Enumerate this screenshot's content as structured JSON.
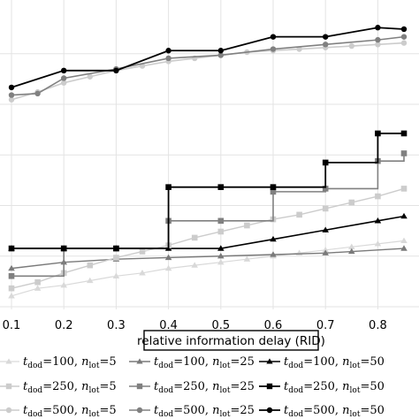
{
  "chart_data": {
    "type": "line",
    "xlabel": "relative information delay (RID)",
    "xticks": [
      "0.1",
      "0.2",
      "0.3",
      "0.4",
      "0.5",
      "0.6",
      "0.7",
      "0.8"
    ],
    "xlim": [
      0.1,
      0.85
    ],
    "ylim": [
      0,
      1
    ],
    "grid": true,
    "legend_position": "bottom",
    "series": [
      {
        "name_parts": {
          "t": "100",
          "n": "5"
        },
        "color": "#d9d9d9",
        "marker": "triangle",
        "width": 1.2,
        "x": [
          0.1,
          0.15,
          0.2,
          0.25,
          0.3,
          0.35,
          0.4,
          0.45,
          0.5,
          0.55,
          0.6,
          0.65,
          0.7,
          0.75,
          0.8,
          0.85
        ],
        "y": [
          0.035,
          0.06,
          0.07,
          0.085,
          0.1,
          0.11,
          0.125,
          0.135,
          0.145,
          0.155,
          0.165,
          0.175,
          0.185,
          0.195,
          0.205,
          0.215
        ]
      },
      {
        "name_parts": {
          "t": "100",
          "n": "25"
        },
        "color": "#7a7a7a",
        "marker": "triangle",
        "width": 1.4,
        "x": [
          0.1,
          0.2,
          0.3,
          0.4,
          0.5,
          0.6,
          0.7,
          0.75,
          0.85
        ],
        "y": [
          0.125,
          0.145,
          0.155,
          0.16,
          0.165,
          0.17,
          0.175,
          0.18,
          0.19
        ]
      },
      {
        "name_parts": {
          "t": "100",
          "n": "50"
        },
        "color": "#000000",
        "marker": "triangle",
        "width": 1.6,
        "x": [
          0.1,
          0.2,
          0.3,
          0.4,
          0.5,
          0.6,
          0.7,
          0.8,
          0.85
        ],
        "y": [
          0.19,
          0.19,
          0.19,
          0.19,
          0.19,
          0.22,
          0.25,
          0.28,
          0.295
        ]
      },
      {
        "name_parts": {
          "t": "250",
          "n": "5"
        },
        "color": "#cccccc",
        "marker": "square",
        "width": 1.4,
        "x": [
          0.1,
          0.15,
          0.2,
          0.25,
          0.3,
          0.35,
          0.4,
          0.45,
          0.5,
          0.55,
          0.6,
          0.65,
          0.7,
          0.75,
          0.8,
          0.85
        ],
        "y": [
          0.06,
          0.08,
          0.11,
          0.135,
          0.16,
          0.18,
          0.2,
          0.225,
          0.245,
          0.265,
          0.285,
          0.3,
          0.32,
          0.34,
          0.36,
          0.385
        ]
      },
      {
        "name_parts": {
          "t": "250",
          "n": "25"
        },
        "color": "#808080",
        "marker": "square",
        "width": 1.6,
        "x": [
          0.1,
          0.2,
          0.3,
          0.4,
          0.5,
          0.6,
          0.7,
          0.8,
          0.85
        ],
        "y": [
          0.1,
          0.19,
          0.19,
          0.28,
          0.28,
          0.375,
          0.385,
          0.475,
          0.5
        ]
      },
      {
        "name_parts": {
          "t": "250",
          "n": "50"
        },
        "color": "#000000",
        "marker": "square",
        "width": 1.8,
        "x": [
          0.1,
          0.2,
          0.3,
          0.4,
          0.5,
          0.6,
          0.7,
          0.8,
          0.85
        ],
        "y": [
          0.19,
          0.19,
          0.19,
          0.39,
          0.39,
          0.39,
          0.47,
          0.565,
          0.565
        ]
      },
      {
        "name_parts": {
          "t": "500",
          "n": "5"
        },
        "color": "#cccccc",
        "marker": "circle",
        "width": 1.6,
        "x": [
          0.1,
          0.15,
          0.2,
          0.25,
          0.3,
          0.35,
          0.4,
          0.45,
          0.5,
          0.55,
          0.6,
          0.65,
          0.7,
          0.75,
          0.8,
          0.85
        ],
        "y": [
          0.675,
          0.7,
          0.73,
          0.75,
          0.77,
          0.785,
          0.8,
          0.81,
          0.82,
          0.83,
          0.835,
          0.84,
          0.845,
          0.85,
          0.855,
          0.86
        ]
      },
      {
        "name_parts": {
          "t": "500",
          "n": "25"
        },
        "color": "#808080",
        "marker": "circle",
        "width": 1.6,
        "x": [
          0.1,
          0.15,
          0.2,
          0.3,
          0.4,
          0.5,
          0.6,
          0.7,
          0.8,
          0.85
        ],
        "y": [
          0.69,
          0.695,
          0.745,
          0.775,
          0.81,
          0.82,
          0.84,
          0.855,
          0.87,
          0.88
        ]
      },
      {
        "name_parts": {
          "t": "500",
          "n": "50"
        },
        "color": "#000000",
        "marker": "circle",
        "width": 1.8,
        "x": [
          0.1,
          0.2,
          0.3,
          0.4,
          0.5,
          0.6,
          0.7,
          0.8,
          0.85
        ],
        "y": [
          0.715,
          0.77,
          0.77,
          0.835,
          0.835,
          0.88,
          0.88,
          0.91,
          0.905
        ]
      }
    ]
  }
}
